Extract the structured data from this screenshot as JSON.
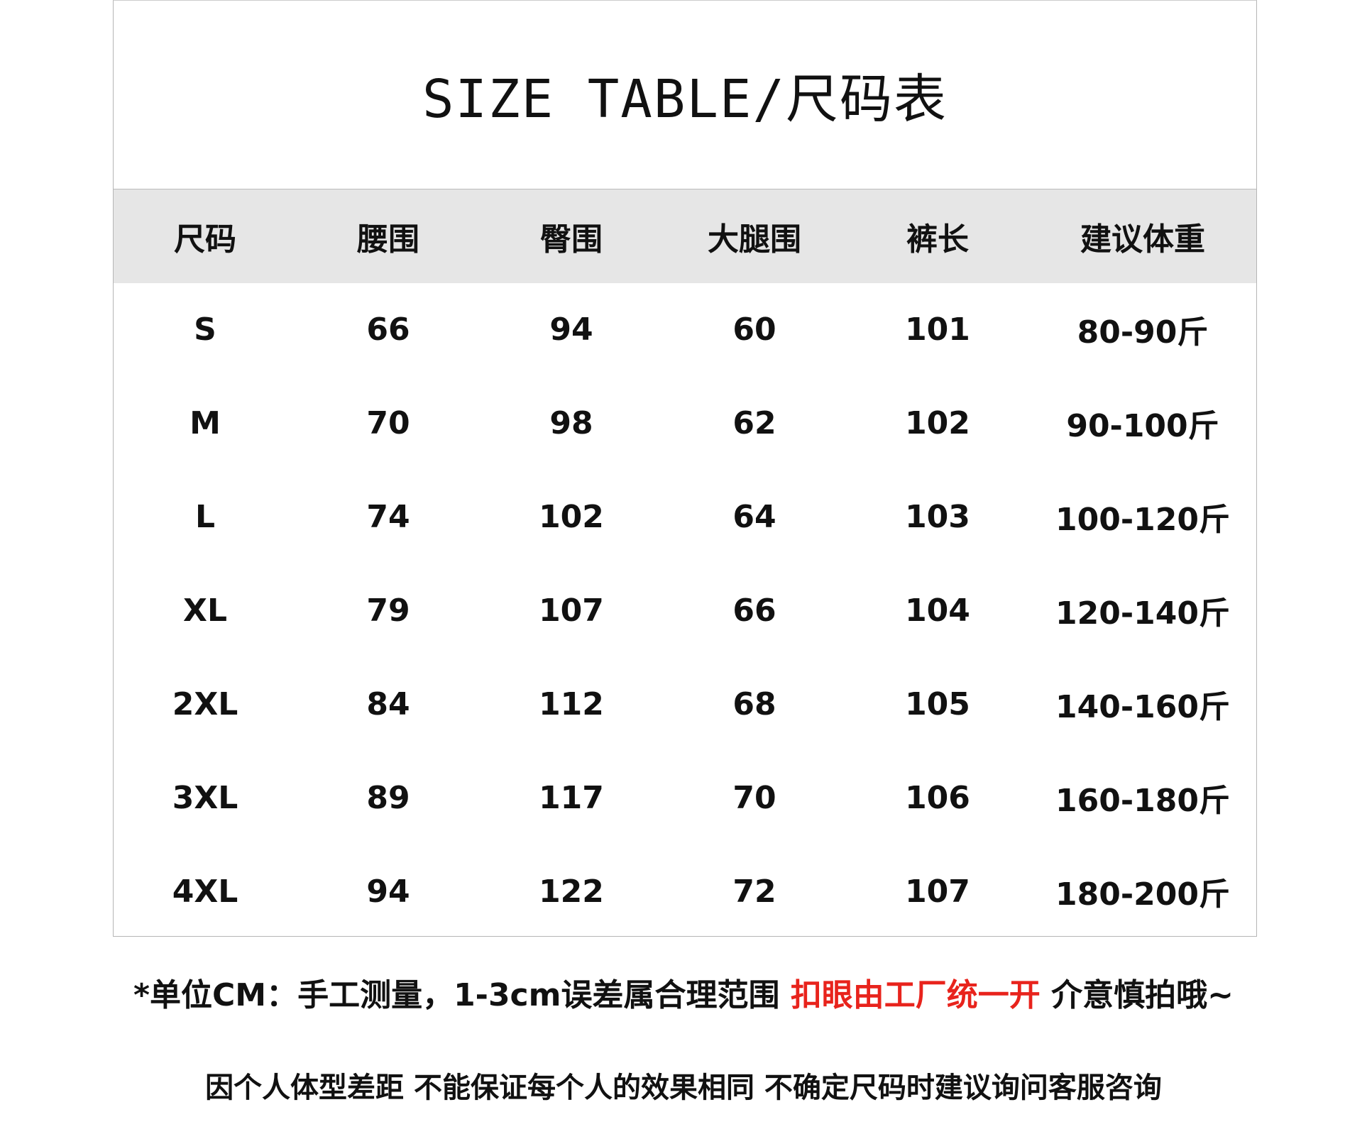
{
  "title": "SIZE TABLE/尺码表",
  "headers": [
    "尺码",
    "腰围",
    "臀围",
    "大腿围",
    "裤长",
    "建议体重"
  ],
  "rows": [
    [
      "S",
      "66",
      "94",
      "60",
      "101",
      "80-90斤"
    ],
    [
      "M",
      "70",
      "98",
      "62",
      "102",
      "90-100斤"
    ],
    [
      "L",
      "74",
      "102",
      "64",
      "103",
      "100-120斤"
    ],
    [
      "XL",
      "79",
      "107",
      "66",
      "104",
      "120-140斤"
    ],
    [
      "2XL",
      "84",
      "112",
      "68",
      "105",
      "140-160斤"
    ],
    [
      "3XL",
      "89",
      "117",
      "70",
      "106",
      "160-180斤"
    ],
    [
      "4XL",
      "94",
      "122",
      "72",
      "107",
      "180-200斤"
    ]
  ],
  "notes": {
    "line1_a": "*单位CM：手工测量，1-3cm误差属合理范围 ",
    "line1_red": "扣眼由工厂统一开",
    "line1_b": " 介意慎拍哦~",
    "line2": "因个人体型差距 不能保证每个人的效果相同 不确定尺码时建议询问客服咨询"
  },
  "colors": {
    "header_bg": "#e6e6e6",
    "highlight": "#e8231c"
  }
}
